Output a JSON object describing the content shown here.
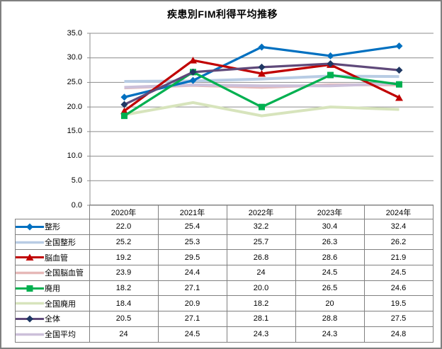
{
  "chart_data": {
    "type": "line",
    "title": "疾患別FIM利得平均推移",
    "categories": [
      "2020年",
      "2021年",
      "2022年",
      "2023年",
      "2024年"
    ],
    "y_ticks": [
      "35.0",
      "30.0",
      "25.0",
      "20.0",
      "15.0",
      "10.0",
      "5.0",
      "0.0"
    ],
    "ylim": [
      0,
      35
    ],
    "grid": true,
    "legend_position": "table-left-column",
    "series": [
      {
        "name": "整形",
        "color": "#0070C0",
        "marker": "diamond",
        "marker_color": "#0070C0",
        "line_width": 3.25,
        "values": [
          22.0,
          25.4,
          32.2,
          30.4,
          32.4
        ],
        "display": [
          "22.0",
          "25.4",
          "32.2",
          "30.4",
          "32.4"
        ]
      },
      {
        "name": "全国整形",
        "color": "#B8CCE4",
        "marker": "none",
        "marker_color": "#B8CCE4",
        "line_width": 4,
        "values": [
          25.2,
          25.3,
          25.7,
          26.3,
          26.2
        ],
        "display": [
          "25.2",
          "25.3",
          "25.7",
          "26.3",
          "26.2"
        ]
      },
      {
        "name": "脳血管",
        "color": "#C00000",
        "marker": "triangle",
        "marker_color": "#C00000",
        "line_width": 3.25,
        "values": [
          19.2,
          29.5,
          26.8,
          28.6,
          21.9
        ],
        "display": [
          "19.2",
          "29.5",
          "26.8",
          "28.6",
          "21.9"
        ]
      },
      {
        "name": "全国脳血管",
        "color": "#E6B8B7",
        "marker": "none",
        "marker_color": "#E6B8B7",
        "line_width": 4,
        "values": [
          23.9,
          24.4,
          24,
          24.5,
          24.5
        ],
        "display": [
          "23.9",
          "24.4",
          "24",
          "24.5",
          "24.5"
        ]
      },
      {
        "name": "廃用",
        "color": "#00B050",
        "marker": "square",
        "marker_color": "#00B050",
        "line_width": 3.25,
        "values": [
          18.2,
          27.1,
          20.0,
          26.5,
          24.6
        ],
        "display": [
          "18.2",
          "27.1",
          "20.0",
          "26.5",
          "24.6"
        ]
      },
      {
        "name": "全国廃用",
        "color": "#D7E4BC",
        "marker": "none",
        "marker_color": "#D7E4BC",
        "line_width": 4,
        "values": [
          18.4,
          20.9,
          18.2,
          20,
          19.5
        ],
        "display": [
          "18.4",
          "20.9",
          "18.2",
          "20",
          "19.5"
        ]
      },
      {
        "name": "全体",
        "color": "#5F497A",
        "marker": "diamond",
        "marker_color": "#1F3864",
        "line_width": 3.25,
        "values": [
          20.5,
          27.1,
          28.1,
          28.8,
          27.5
        ],
        "display": [
          "20.5",
          "27.1",
          "28.1",
          "28.8",
          "27.5"
        ]
      },
      {
        "name": "全国平均",
        "color": "#CCC0DA",
        "marker": "none",
        "marker_color": "#CCC0DA",
        "line_width": 4,
        "values": [
          24,
          24.5,
          24.3,
          24.3,
          24.8
        ],
        "display": [
          "24",
          "24.5",
          "24.3",
          "24.3",
          "24.8"
        ]
      }
    ]
  },
  "colors": {
    "gridline": "#8C8C8C",
    "axis": "#8C8C8C",
    "table_border": "#808080",
    "frame_border": "#808080",
    "text": "#000000",
    "background": "#FFFFFF"
  }
}
